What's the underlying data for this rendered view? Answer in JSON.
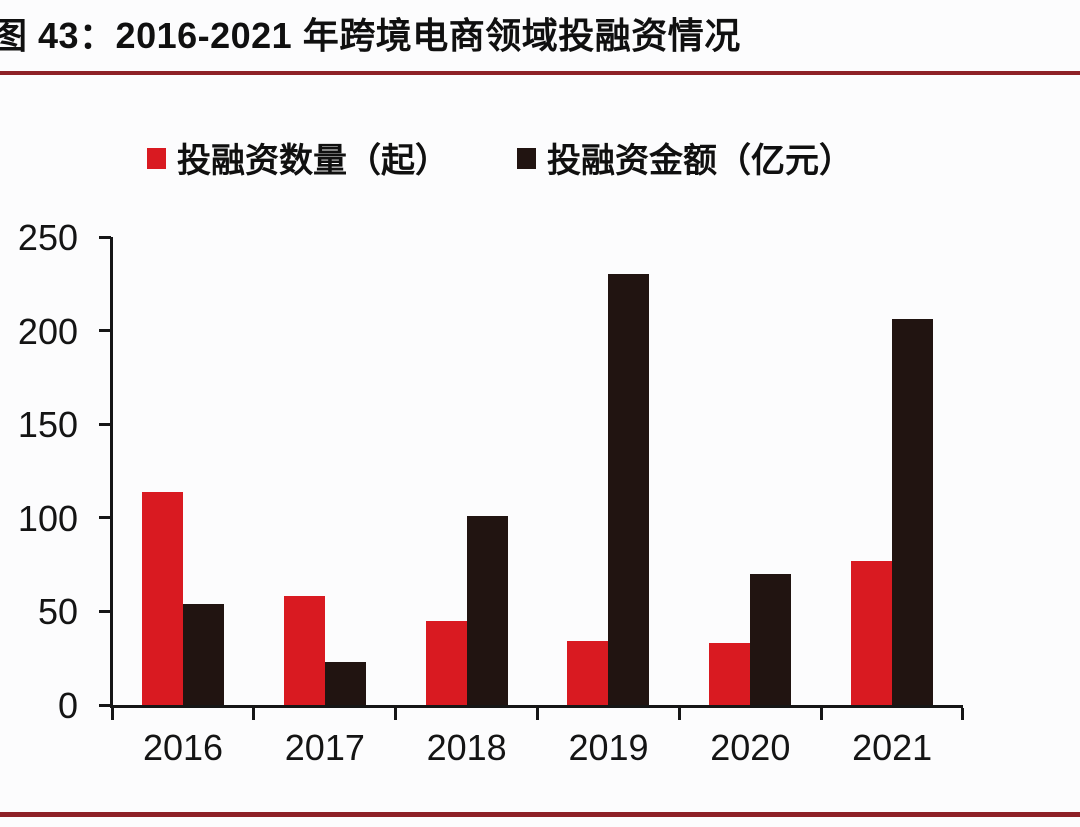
{
  "header": {
    "title": "图 43：2016-2021 年跨境电商领域投融资情况",
    "rule_color": "#8e2127"
  },
  "legend": [
    {
      "label": "投融资数量（起）",
      "color": "#d91a21"
    },
    {
      "label": "投融资金额（亿元）",
      "color": "#211411"
    }
  ],
  "chart_data": {
    "type": "bar",
    "title": "2016-2021 年跨境电商领域投融资情况",
    "categories": [
      "2016",
      "2017",
      "2018",
      "2019",
      "2020",
      "2021"
    ],
    "series": [
      {
        "name": "投融资数量（起）",
        "color": "#d91a21",
        "values": [
          114,
          58,
          45,
          34,
          33,
          77
        ]
      },
      {
        "name": "投融资金额（亿元）",
        "color": "#211411",
        "values": [
          54,
          23,
          101,
          230,
          70,
          206
        ]
      }
    ],
    "xlabel": "",
    "ylabel": "",
    "ylim": [
      0,
      250
    ],
    "yticks": [
      0,
      50,
      100,
      150,
      200,
      250
    ],
    "grid": false,
    "legend_position": "top",
    "axis_color": "#161616"
  },
  "footer": {
    "rule_color": "#8e2127"
  }
}
